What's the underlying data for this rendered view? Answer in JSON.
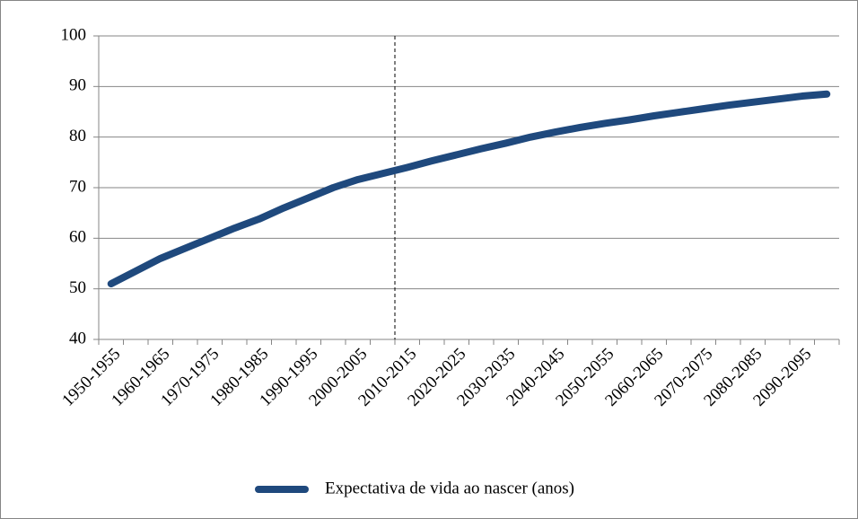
{
  "chart_data": {
    "type": "line",
    "categories": [
      "1950-1955",
      null,
      "1960-1965",
      null,
      "1970-1975",
      null,
      "1980-1985",
      null,
      "1990-1995",
      null,
      "2000-2005",
      null,
      "2010-2015",
      null,
      "2020-2025",
      null,
      "2030-2035",
      null,
      "2040-2045",
      null,
      "2050-2055",
      null,
      "2060-2065",
      null,
      "2070-2075",
      null,
      "2080-2085",
      null,
      "2090-2095",
      null
    ],
    "series": [
      {
        "name": "Expectativa de vida ao nascer (anos)",
        "color": "#1f497d",
        "values": [
          51,
          53.5,
          56,
          58,
          60,
          62,
          63.8,
          66,
          68,
          70,
          71.6,
          72.8,
          74,
          75.3,
          76.5,
          77.7,
          78.8,
          80,
          81,
          81.9,
          82.7,
          83.4,
          84.2,
          84.9,
          85.6,
          86.3,
          86.9,
          87.5,
          88.1,
          88.5
        ]
      }
    ],
    "ylim": [
      40,
      100
    ],
    "yticks": [
      40,
      50,
      60,
      70,
      80,
      90,
      100
    ],
    "grid": true,
    "legend": "bottom"
  }
}
